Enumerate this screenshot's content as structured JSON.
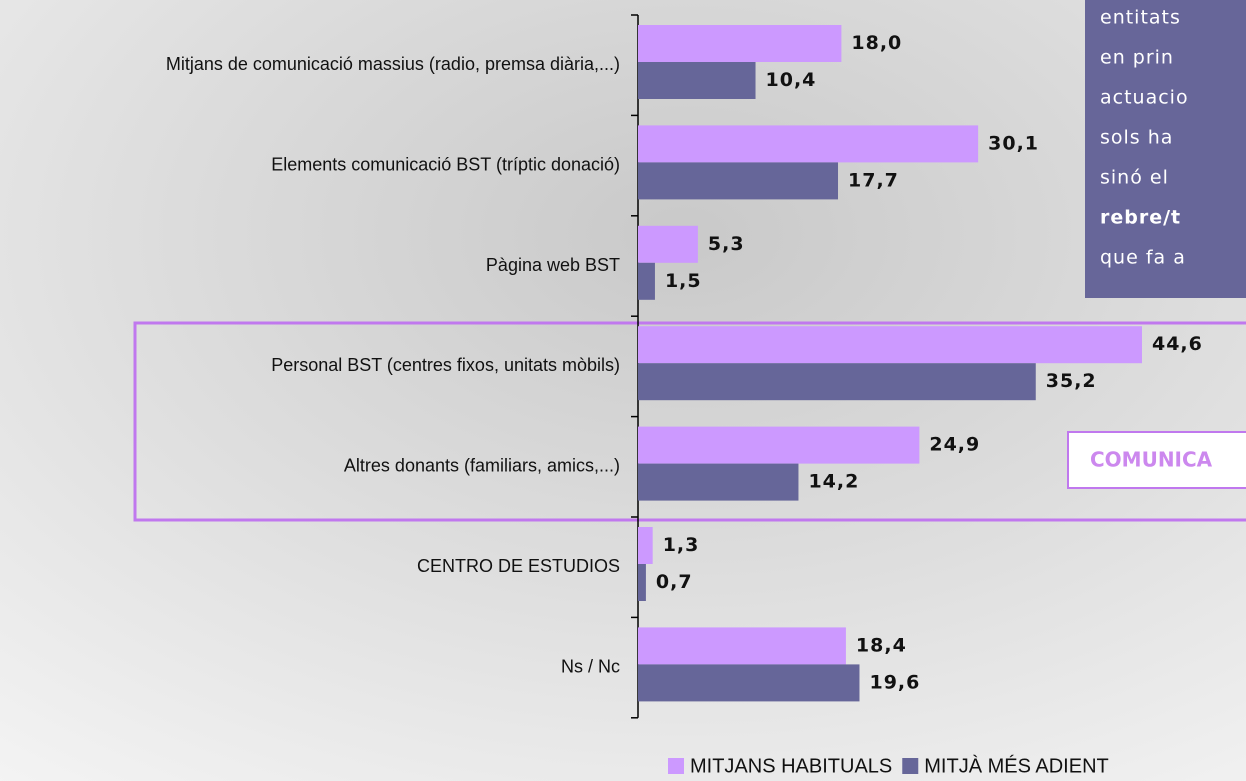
{
  "chart_data": {
    "type": "hbar",
    "categories": [
      "Mitjans de comunicació massius (radio, premsa diària,...)",
      "Elements comunicació BST (tríptic donació)",
      "Pàgina web BST",
      "Personal BST (centres fixos, unitats mòbils)",
      "Altres donants (familiars, amics,...)",
      "CENTRO DE ESTUDIOS",
      "Ns / Nc"
    ],
    "series": [
      {
        "name": "MITJANS HABITUALS",
        "color": "#cc99ff",
        "values": [
          18.0,
          30.1,
          5.3,
          44.6,
          24.9,
          1.3,
          18.4
        ],
        "value_labels": [
          "18,0",
          "30,1",
          "5,3",
          "44,6",
          "24,9",
          "1,3",
          "18,4"
        ]
      },
      {
        "name": "MITJÀ MÉS ADIENT",
        "color": "#666699",
        "values": [
          10.4,
          17.7,
          1.5,
          35.2,
          14.2,
          0.7,
          19.6
        ],
        "value_labels": [
          "10,4",
          "17,7",
          "1,5",
          "35,2",
          "14,2",
          "0,7",
          "19,6"
        ]
      }
    ],
    "annotation_lines": [
      "entitats",
      "en prin",
      "actuacio",
      "sols ha",
      "sinó el",
      "rebre/t",
      "que fa a"
    ],
    "callout": "COMUNICA"
  }
}
